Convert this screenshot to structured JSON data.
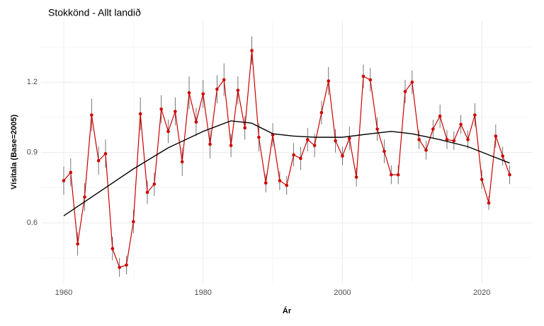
{
  "chart_data": {
    "type": "line",
    "title": "Stokkönd - Allt landið",
    "x_label": "Ár",
    "y_label": "Vísitala (Base=2005)",
    "x": [
      1960,
      1961,
      1962,
      1963,
      1964,
      1965,
      1966,
      1967,
      1968,
      1969,
      1970,
      1971,
      1972,
      1973,
      1974,
      1975,
      1976,
      1977,
      1978,
      1979,
      1980,
      1981,
      1982,
      1983,
      1984,
      1985,
      1986,
      1987,
      1988,
      1989,
      1990,
      1991,
      1992,
      1993,
      1994,
      1995,
      1996,
      1997,
      1998,
      1999,
      2000,
      2001,
      2002,
      2003,
      2004,
      2005,
      2006,
      2007,
      2008,
      2009,
      2010,
      2011,
      2012,
      2013,
      2014,
      2015,
      2016,
      2017,
      2018,
      2019,
      2020,
      2021,
      2022,
      2023,
      2024
    ],
    "series": [
      {
        "color": "#cc0000",
        "values": [
          0.78,
          0.815,
          0.51,
          0.71,
          1.06,
          0.865,
          0.895,
          0.49,
          0.41,
          0.42,
          0.605,
          1.065,
          0.73,
          0.765,
          1.085,
          0.99,
          1.075,
          0.86,
          1.155,
          1.03,
          1.15,
          0.935,
          1.17,
          1.21,
          0.93,
          1.165,
          1.005,
          1.335,
          0.965,
          0.77,
          0.975,
          0.78,
          0.76,
          0.89,
          0.875,
          0.955,
          0.93,
          1.07,
          1.205,
          0.95,
          0.885,
          0.96,
          0.795,
          1.225,
          1.21,
          1.0,
          0.905,
          0.805,
          0.805,
          1.16,
          1.2,
          0.955,
          0.91,
          1.0,
          1.055,
          0.955,
          0.95,
          1.02,
          0.955,
          1.06,
          0.785,
          0.685,
          0.97,
          0.885,
          0.805
        ],
        "errors": [
          0.06,
          0.06,
          0.05,
          0.06,
          0.07,
          0.06,
          0.06,
          0.05,
          0.04,
          0.04,
          0.05,
          0.07,
          0.05,
          0.05,
          0.06,
          0.05,
          0.06,
          0.06,
          0.07,
          0.06,
          0.06,
          0.06,
          0.06,
          0.07,
          0.05,
          0.06,
          0.05,
          0.06,
          0.06,
          0.04,
          0.05,
          0.04,
          0.04,
          0.05,
          0.05,
          0.05,
          0.05,
          0.05,
          0.06,
          0.05,
          0.04,
          0.05,
          0.04,
          0.05,
          0.05,
          0.05,
          0.05,
          0.04,
          0.04,
          0.05,
          0.05,
          0.04,
          0.04,
          0.04,
          0.05,
          0.04,
          0.04,
          0.04,
          0.04,
          0.05,
          0.04,
          0.03,
          0.05,
          0.04,
          0.04
        ]
      }
    ],
    "trend": {
      "color": "#000000",
      "x": [
        1960,
        1963,
        1966,
        1970,
        1975,
        1980,
        1984,
        1987,
        1990,
        1993,
        1996,
        2000,
        2004,
        2007,
        2010,
        2014,
        2018,
        2021,
        2024
      ],
      "values": [
        0.63,
        0.69,
        0.75,
        0.83,
        0.92,
        0.99,
        1.035,
        1.025,
        0.98,
        0.97,
        0.965,
        0.965,
        0.98,
        0.99,
        0.98,
        0.955,
        0.925,
        0.89,
        0.855
      ]
    },
    "xlim": [
      1956.75,
      2027.3
    ],
    "ylim": [
      0.344,
      1.46
    ],
    "xticks": [
      1960,
      1980,
      2000,
      2020
    ],
    "yticks": [
      0.6,
      0.9,
      1.2
    ],
    "x_minor_ticks": [
      1970,
      1990,
      2010
    ],
    "y_minor_ticks": [
      0.45,
      0.75,
      1.05,
      1.35
    ],
    "grid": true
  }
}
